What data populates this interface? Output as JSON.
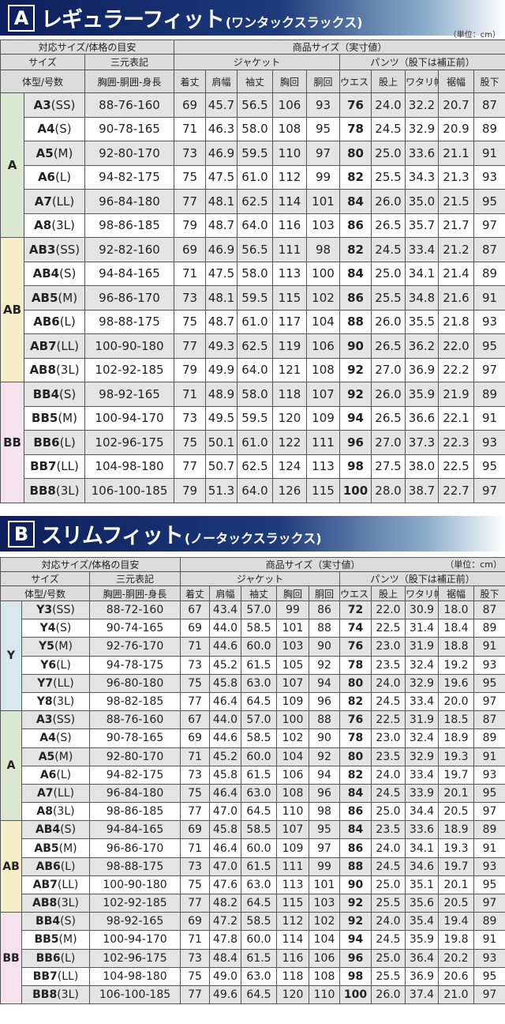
{
  "sections": [
    {
      "badge": "A",
      "title": "レギュラーフィット",
      "subtitle": "(ワンタックスラックス)",
      "unit": "（単位：cm）",
      "header": {
        "row1": [
          "対応サイズ/体格の目安",
          "商品サイズ（実寸値）"
        ],
        "row2": [
          "サイズ",
          "三元表記",
          "ジャケット",
          "パンツ（股下は補正前）"
        ],
        "row3": [
          "体型/号数",
          "胸囲-胴囲-身長",
          "着丈",
          "肩幅",
          "袖丈",
          "胸回",
          "胴回",
          "ウエスト",
          "股上",
          "ワタリ幅",
          "裾幅",
          "股下"
        ]
      },
      "groups": [
        {
          "type": "A",
          "rows": [
            {
              "code": "A3",
              "size": "(SS)",
              "cells": [
                "88-76-160",
                "69",
                "45.7",
                "56.5",
                "106",
                "93",
                "76",
                "24.0",
                "32.2",
                "20.7",
                "87"
              ]
            },
            {
              "code": "A4",
              "size": "(S)",
              "cells": [
                "90-78-165",
                "71",
                "46.3",
                "58.0",
                "108",
                "95",
                "78",
                "24.5",
                "32.9",
                "20.9",
                "89"
              ]
            },
            {
              "code": "A5",
              "size": "(M)",
              "cells": [
                "92-80-170",
                "73",
                "46.9",
                "59.5",
                "110",
                "97",
                "80",
                "25.0",
                "33.6",
                "21.1",
                "91"
              ]
            },
            {
              "code": "A6",
              "size": "(L)",
              "cells": [
                "94-82-175",
                "75",
                "47.5",
                "61.0",
                "112",
                "99",
                "82",
                "25.5",
                "34.3",
                "21.3",
                "93"
              ]
            },
            {
              "code": "A7",
              "size": "(LL)",
              "cells": [
                "96-84-180",
                "77",
                "48.1",
                "62.5",
                "114",
                "101",
                "84",
                "26.0",
                "35.0",
                "21.5",
                "95"
              ]
            },
            {
              "code": "A8",
              "size": "(3L)",
              "cells": [
                "98-86-185",
                "79",
                "48.7",
                "64.0",
                "116",
                "103",
                "86",
                "26.5",
                "35.7",
                "21.7",
                "97"
              ]
            }
          ]
        },
        {
          "type": "AB",
          "rows": [
            {
              "code": "AB3",
              "size": "(SS)",
              "cells": [
                "92-82-160",
                "69",
                "46.9",
                "56.5",
                "111",
                "98",
                "82",
                "24.5",
                "33.4",
                "21.2",
                "87"
              ]
            },
            {
              "code": "AB4",
              "size": "(S)",
              "cells": [
                "94-84-165",
                "71",
                "47.5",
                "58.0",
                "113",
                "100",
                "84",
                "25.0",
                "34.1",
                "21.4",
                "89"
              ]
            },
            {
              "code": "AB5",
              "size": "(M)",
              "cells": [
                "96-86-170",
                "73",
                "48.1",
                "59.5",
                "115",
                "102",
                "86",
                "25.5",
                "34.8",
                "21.6",
                "91"
              ]
            },
            {
              "code": "AB6",
              "size": "(L)",
              "cells": [
                "98-88-175",
                "75",
                "48.7",
                "61.0",
                "117",
                "104",
                "88",
                "26.0",
                "35.5",
                "21.8",
                "93"
              ]
            },
            {
              "code": "AB7",
              "size": "(LL)",
              "cells": [
                "100-90-180",
                "77",
                "49.3",
                "62.5",
                "119",
                "106",
                "90",
                "26.5",
                "36.2",
                "22.0",
                "95"
              ]
            },
            {
              "code": "AB8",
              "size": "(3L)",
              "cells": [
                "102-92-185",
                "79",
                "49.9",
                "64.0",
                "121",
                "108",
                "92",
                "27.0",
                "36.9",
                "22.2",
                "97"
              ]
            }
          ]
        },
        {
          "type": "BB",
          "rows": [
            {
              "code": "BB4",
              "size": "(S)",
              "cells": [
                "98-92-165",
                "71",
                "48.9",
                "58.0",
                "118",
                "107",
                "92",
                "26.0",
                "35.9",
                "21.9",
                "89"
              ]
            },
            {
              "code": "BB5",
              "size": "(M)",
              "cells": [
                "100-94-170",
                "73",
                "49.5",
                "59.5",
                "120",
                "109",
                "94",
                "26.5",
                "36.6",
                "22.1",
                "91"
              ]
            },
            {
              "code": "BB6",
              "size": "(L)",
              "cells": [
                "102-96-175",
                "75",
                "50.1",
                "61.0",
                "122",
                "111",
                "96",
                "27.0",
                "37.3",
                "22.3",
                "93"
              ]
            },
            {
              "code": "BB7",
              "size": "(LL)",
              "cells": [
                "104-98-180",
                "77",
                "50.7",
                "62.5",
                "124",
                "113",
                "98",
                "27.5",
                "38.0",
                "22.5",
                "95"
              ]
            },
            {
              "code": "BB8",
              "size": "(3L)",
              "cells": [
                "106-100-185",
                "79",
                "51.3",
                "64.0",
                "126",
                "115",
                "100",
                "28.0",
                "38.7",
                "22.7",
                "97"
              ]
            }
          ]
        }
      ]
    },
    {
      "badge": "B",
      "title": "スリムフィット",
      "subtitle": "(ノータックスラックス)",
      "unit": "（単位：cm）",
      "header": {
        "row1": [
          "対応サイズ/体格の目安",
          "商品サイズ（実寸値）"
        ],
        "row2": [
          "サイズ",
          "三元表記",
          "ジャケット",
          "パンツ（股下は補正前）"
        ],
        "row3": [
          "体型/号数",
          "胸囲-胴囲-身長",
          "着丈",
          "肩幅",
          "袖丈",
          "胸回",
          "胴回",
          "ウエスト",
          "股上",
          "ワタリ幅",
          "裾幅",
          "股下"
        ]
      },
      "groups": [
        {
          "type": "Y",
          "rows": [
            {
              "code": "Y3",
              "size": "(SS)",
              "cells": [
                "88-72-160",
                "67",
                "43.4",
                "57.0",
                "99",
                "86",
                "72",
                "22.0",
                "30.9",
                "18.0",
                "87"
              ]
            },
            {
              "code": "Y4",
              "size": "(S)",
              "cells": [
                "90-74-165",
                "69",
                "44.0",
                "58.5",
                "101",
                "88",
                "74",
                "22.5",
                "31.4",
                "18.4",
                "89"
              ]
            },
            {
              "code": "Y5",
              "size": "(M)",
              "cells": [
                "92-76-170",
                "71",
                "44.6",
                "60.0",
                "103",
                "90",
                "76",
                "23.0",
                "31.9",
                "18.8",
                "91"
              ]
            },
            {
              "code": "Y6",
              "size": "(L)",
              "cells": [
                "94-78-175",
                "73",
                "45.2",
                "61.5",
                "105",
                "92",
                "78",
                "23.5",
                "32.4",
                "19.2",
                "93"
              ]
            },
            {
              "code": "Y7",
              "size": "(LL)",
              "cells": [
                "96-80-180",
                "75",
                "45.8",
                "63.0",
                "107",
                "94",
                "80",
                "24.0",
                "32.9",
                "19.6",
                "95"
              ]
            },
            {
              "code": "Y8",
              "size": "(3L)",
              "cells": [
                "98-82-185",
                "77",
                "46.4",
                "64.5",
                "109",
                "96",
                "82",
                "24.5",
                "33.4",
                "20.0",
                "97"
              ]
            }
          ]
        },
        {
          "type": "A",
          "rows": [
            {
              "code": "A3",
              "size": "(SS)",
              "cells": [
                "88-76-160",
                "67",
                "44.0",
                "57.0",
                "100",
                "88",
                "76",
                "22.5",
                "31.9",
                "18.5",
                "87"
              ]
            },
            {
              "code": "A4",
              "size": "(S)",
              "cells": [
                "90-78-165",
                "69",
                "44.6",
                "58.5",
                "102",
                "90",
                "78",
                "23.0",
                "32.4",
                "18.9",
                "89"
              ]
            },
            {
              "code": "A5",
              "size": "(M)",
              "cells": [
                "92-80-170",
                "71",
                "45.2",
                "60.0",
                "104",
                "92",
                "80",
                "23.5",
                "32.9",
                "19.3",
                "91"
              ]
            },
            {
              "code": "A6",
              "size": "(L)",
              "cells": [
                "94-82-175",
                "73",
                "45.8",
                "61.5",
                "106",
                "94",
                "82",
                "24.0",
                "33.4",
                "19.7",
                "93"
              ]
            },
            {
              "code": "A7",
              "size": "(LL)",
              "cells": [
                "96-84-180",
                "75",
                "46.4",
                "63.0",
                "108",
                "96",
                "84",
                "24.5",
                "33.9",
                "20.1",
                "95"
              ]
            },
            {
              "code": "A8",
              "size": "(3L)",
              "cells": [
                "98-86-185",
                "77",
                "47.0",
                "64.5",
                "110",
                "98",
                "86",
                "25.0",
                "34.4",
                "20.5",
                "97"
              ]
            }
          ]
        },
        {
          "type": "AB",
          "rows": [
            {
              "code": "AB4",
              "size": "(S)",
              "cells": [
                "94-84-165",
                "69",
                "45.8",
                "58.5",
                "107",
                "95",
                "84",
                "23.5",
                "33.6",
                "18.9",
                "89"
              ]
            },
            {
              "code": "AB5",
              "size": "(M)",
              "cells": [
                "96-86-170",
                "71",
                "46.4",
                "60.0",
                "109",
                "97",
                "86",
                "24.0",
                "34.1",
                "19.3",
                "91"
              ]
            },
            {
              "code": "AB6",
              "size": "(L)",
              "cells": [
                "98-88-175",
                "73",
                "47.0",
                "61.5",
                "111",
                "99",
                "88",
                "24.5",
                "34.6",
                "19.7",
                "93"
              ]
            },
            {
              "code": "AB7",
              "size": "(LL)",
              "cells": [
                "100-90-180",
                "75",
                "47.6",
                "63.0",
                "113",
                "101",
                "90",
                "25.0",
                "35.1",
                "20.1",
                "95"
              ]
            },
            {
              "code": "AB8",
              "size": "(3L)",
              "cells": [
                "102-92-185",
                "77",
                "48.2",
                "64.5",
                "115",
                "103",
                "92",
                "25.5",
                "35.6",
                "20.5",
                "97"
              ]
            }
          ]
        },
        {
          "type": "BB",
          "rows": [
            {
              "code": "BB4",
              "size": "(S)",
              "cells": [
                "98-92-165",
                "69",
                "47.2",
                "58.5",
                "112",
                "102",
                "92",
                "24.0",
                "35.4",
                "19.4",
                "89"
              ]
            },
            {
              "code": "BB5",
              "size": "(M)",
              "cells": [
                "100-94-170",
                "71",
                "47.8",
                "60.0",
                "114",
                "104",
                "94",
                "24.5",
                "35.9",
                "19.8",
                "91"
              ]
            },
            {
              "code": "BB6",
              "size": "(L)",
              "cells": [
                "102-96-175",
                "73",
                "48.4",
                "61.5",
                "116",
                "106",
                "96",
                "25.0",
                "36.4",
                "20.2",
                "93"
              ]
            },
            {
              "code": "BB7",
              "size": "(LL)",
              "cells": [
                "104-98-180",
                "75",
                "49.0",
                "63.0",
                "118",
                "108",
                "98",
                "25.5",
                "36.9",
                "20.6",
                "95"
              ]
            },
            {
              "code": "BB8",
              "size": "(3L)",
              "cells": [
                "106-100-185",
                "77",
                "49.6",
                "64.5",
                "120",
                "110",
                "100",
                "26.0",
                "37.4",
                "21.0",
                "97"
              ]
            }
          ]
        }
      ]
    }
  ]
}
